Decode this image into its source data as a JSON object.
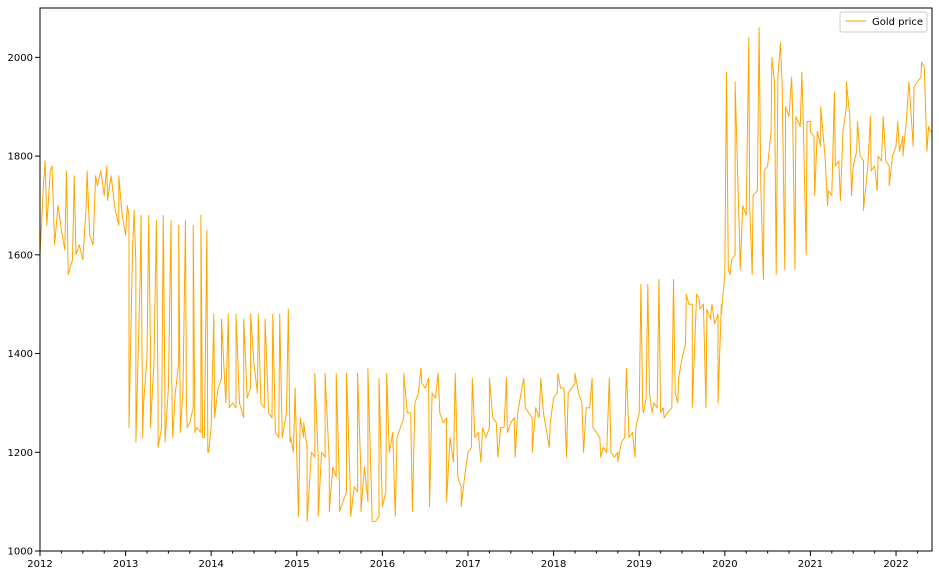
{
  "chart_data": {
    "type": "line",
    "xlim": [
      2012.0,
      2022.42
    ],
    "ylim": [
      1000,
      2100
    ],
    "x_ticks": [
      2012,
      2013,
      2014,
      2015,
      2016,
      2017,
      2018,
      2019,
      2020,
      2021,
      2022
    ],
    "x_tick_labels": [
      "2012",
      "2013",
      "2014",
      "2015",
      "2016",
      "2017",
      "2018",
      "2019",
      "2020",
      "2021",
      "2022"
    ],
    "y_ticks": [
      1000,
      1200,
      1400,
      1600,
      1800,
      2000
    ],
    "y_tick_labels": [
      "1000",
      "1200",
      "1400",
      "1600",
      "1800",
      "2000"
    ],
    "legend_position": "top-right",
    "grid": false,
    "series": [
      {
        "name": "Gold price",
        "color": "#ffa500",
        "x": [
          2012.0,
          2012.04,
          2012.08,
          2012.12,
          2012.17,
          2012.21,
          2012.25,
          2012.29,
          2012.33,
          2012.38,
          2012.42,
          2012.46,
          2012.5,
          2012.54,
          2012.58,
          2012.62,
          2012.67,
          2012.71,
          2012.75,
          2012.79,
          2012.83,
          2012.88,
          2012.92,
          2012.96,
          2013.0,
          2013.04,
          2013.08,
          2013.12,
          2013.17,
          2013.21,
          2013.25,
          2013.29,
          2013.33,
          2013.38,
          2013.42,
          2013.46,
          2013.5,
          2013.54,
          2013.58,
          2013.62,
          2013.67,
          2013.71,
          2013.75,
          2013.79,
          2013.83,
          2013.88,
          2013.92,
          2013.96,
          2014.0,
          2014.04,
          2014.08,
          2014.12,
          2014.17,
          2014.21,
          2014.25,
          2014.29,
          2014.33,
          2014.38,
          2014.42,
          2014.46,
          2014.5,
          2014.54,
          2014.58,
          2014.62,
          2014.67,
          2014.71,
          2014.75,
          2014.79,
          2014.83,
          2014.88,
          2014.92,
          2014.96,
          2015.0,
          2015.04,
          2015.08,
          2015.12,
          2015.17,
          2015.21,
          2015.25,
          2015.29,
          2015.33,
          2015.38,
          2015.42,
          2015.46,
          2015.5,
          2015.54,
          2015.58,
          2015.62,
          2015.67,
          2015.71,
          2015.75,
          2015.79,
          2015.83,
          2015.88,
          2015.92,
          2015.96,
          2016.0,
          2016.04,
          2016.08,
          2016.12,
          2016.17,
          2016.21,
          2016.25,
          2016.29,
          2016.33,
          2016.38,
          2016.42,
          2016.46,
          2016.5,
          2016.54,
          2016.58,
          2016.62,
          2016.67,
          2016.71,
          2016.75,
          2016.79,
          2016.83,
          2016.88,
          2016.92,
          2016.96,
          2017.0,
          2017.04,
          2017.08,
          2017.12,
          2017.17,
          2017.21,
          2017.25,
          2017.29,
          2017.33,
          2017.38,
          2017.42,
          2017.46,
          2017.5,
          2017.54,
          2017.58,
          2017.62,
          2017.67,
          2017.71,
          2017.75,
          2017.79,
          2017.83,
          2017.88,
          2017.92,
          2017.96,
          2018.0,
          2018.04,
          2018.08,
          2018.12,
          2018.17,
          2018.21,
          2018.25,
          2018.29,
          2018.33,
          2018.38,
          2018.42,
          2018.46,
          2018.5,
          2018.54,
          2018.58,
          2018.62,
          2018.67,
          2018.71,
          2018.75,
          2018.79,
          2018.83,
          2018.88,
          2018.92,
          2018.96,
          2019.0,
          2019.04,
          2019.08,
          2019.12,
          2019.17,
          2019.21,
          2019.25,
          2019.29,
          2019.33,
          2019.38,
          2019.42,
          2019.46,
          2019.5,
          2019.54,
          2019.58,
          2019.62,
          2019.67,
          2019.71,
          2019.75,
          2019.79,
          2019.83,
          2019.88,
          2019.92,
          2019.96,
          2020.0,
          2020.04,
          2020.08,
          2020.12,
          2020.17,
          2020.21,
          2020.25,
          2020.29,
          2020.33,
          2020.38,
          2020.42,
          2020.46,
          2020.5,
          2020.54,
          2020.58,
          2020.62,
          2020.67,
          2020.71,
          2020.75,
          2020.79,
          2020.83,
          2020.88,
          2020.92,
          2020.96,
          2021.0,
          2021.04,
          2021.08,
          2021.12,
          2021.17,
          2021.21,
          2021.25,
          2021.29,
          2021.33,
          2021.38,
          2021.42,
          2021.46,
          2021.5,
          2021.54,
          2021.58,
          2021.62,
          2021.67,
          2021.71,
          2021.75,
          2021.79,
          2021.83,
          2021.88,
          2021.92,
          2021.96,
          2022.0,
          2022.04,
          2022.08,
          2022.12,
          2022.17,
          2022.21,
          2022.25,
          2022.29,
          2022.33,
          2022.38,
          2022.42
        ],
        "y": [
          1600,
          1740,
          1660,
          1770,
          1620,
          1700,
          1650,
          1610,
          1560,
          1590,
          1600,
          1620,
          1590,
          1700,
          1640,
          1620,
          1740,
          1770,
          1720,
          1710,
          1760,
          1690,
          1660,
          1680,
          1640,
          1680,
          1610,
          1580,
          1560,
          1300,
          1390,
          1420,
          1380,
          1300,
          1250,
          1290,
          1330,
          1340,
          1320,
          1380,
          1330,
          1300,
          1260,
          1290,
          1250,
          1240,
          1230,
          1200,
          1250,
          1270,
          1330,
          1350,
          1300,
          1290,
          1300,
          1290,
          1300,
          1270,
          1310,
          1330,
          1380,
          1320,
          1300,
          1290,
          1280,
          1270,
          1240,
          1230,
          1230,
          1280,
          1220,
          1200,
          1190,
          1270,
          1230,
          1210,
          1200,
          1190,
          1190,
          1200,
          1190,
          1180,
          1170,
          1150,
          1120,
          1100,
          1120,
          1150,
          1130,
          1120,
          1150,
          1170,
          1100,
          1070,
          1060,
          1070,
          1090,
          1120,
          1200,
          1240,
          1230,
          1250,
          1270,
          1280,
          1280,
          1300,
          1320,
          1340,
          1330,
          1350,
          1320,
          1310,
          1280,
          1260,
          1270,
          1230,
          1180,
          1150,
          1130,
          1150,
          1200,
          1210,
          1230,
          1240,
          1250,
          1230,
          1250,
          1270,
          1260,
          1250,
          1250,
          1240,
          1260,
          1270,
          1280,
          1320,
          1290,
          1280,
          1270,
          1290,
          1270,
          1280,
          1240,
          1260,
          1310,
          1320,
          1330,
          1330,
          1320,
          1330,
          1340,
          1320,
          1300,
          1290,
          1290,
          1250,
          1240,
          1230,
          1210,
          1200,
          1200,
          1190,
          1200,
          1220,
          1230,
          1230,
          1240,
          1250,
          1280,
          1290,
          1310,
          1320,
          1300,
          1290,
          1280,
          1270,
          1280,
          1290,
          1320,
          1350,
          1390,
          1420,
          1500,
          1500,
          1520,
          1490,
          1500,
          1490,
          1470,
          1460,
          1480,
          1500,
          1560,
          1570,
          1590,
          1600,
          1640,
          1700,
          1680,
          1700,
          1720,
          1730,
          1740,
          1770,
          1780,
          1850,
          1950,
          1960,
          1940,
          1900,
          1880,
          1900,
          1880,
          1860,
          1840,
          1870,
          1870,
          1840,
          1850,
          1820,
          1800,
          1730,
          1720,
          1780,
          1790,
          1850,
          1900,
          1880,
          1780,
          1810,
          1800,
          1790,
          1780,
          1770,
          1780,
          1800,
          1790,
          1790,
          1780,
          1800,
          1820,
          1810,
          1840,
          1870,
          1900,
          1940,
          1950,
          1960,
          1980,
          1860,
          1850
        ],
        "spikes": [
          [
            2012.06,
            1790
          ],
          [
            2012.14,
            1780
          ],
          [
            2012.31,
            1770
          ],
          [
            2012.4,
            1760
          ],
          [
            2012.55,
            1770
          ],
          [
            2012.65,
            1760
          ],
          [
            2012.78,
            1780
          ],
          [
            2012.92,
            1760
          ],
          [
            2013.02,
            1700
          ],
          [
            2013.04,
            1250
          ],
          [
            2013.1,
            1690
          ],
          [
            2013.12,
            1220
          ],
          [
            2013.18,
            1680
          ],
          [
            2013.2,
            1230
          ],
          [
            2013.27,
            1680
          ],
          [
            2013.29,
            1250
          ],
          [
            2013.36,
            1670
          ],
          [
            2013.38,
            1210
          ],
          [
            2013.44,
            1680
          ],
          [
            2013.46,
            1220
          ],
          [
            2013.53,
            1670
          ],
          [
            2013.55,
            1230
          ],
          [
            2013.62,
            1660
          ],
          [
            2013.64,
            1240
          ],
          [
            2013.7,
            1670
          ],
          [
            2013.72,
            1250
          ],
          [
            2013.79,
            1660
          ],
          [
            2013.81,
            1240
          ],
          [
            2013.88,
            1680
          ],
          [
            2013.9,
            1230
          ],
          [
            2013.95,
            1650
          ],
          [
            2013.97,
            1200
          ],
          [
            2014.03,
            1480
          ],
          [
            2014.12,
            1470
          ],
          [
            2014.2,
            1480
          ],
          [
            2014.29,
            1480
          ],
          [
            2014.38,
            1470
          ],
          [
            2014.46,
            1480
          ],
          [
            2014.55,
            1480
          ],
          [
            2014.63,
            1470
          ],
          [
            2014.72,
            1480
          ],
          [
            2014.8,
            1480
          ],
          [
            2014.9,
            1490
          ],
          [
            2014.93,
            1230
          ],
          [
            2014.98,
            1330
          ],
          [
            2015.02,
            1070
          ],
          [
            2015.08,
            1260
          ],
          [
            2015.12,
            1060
          ],
          [
            2015.21,
            1360
          ],
          [
            2015.25,
            1070
          ],
          [
            2015.33,
            1360
          ],
          [
            2015.38,
            1080
          ],
          [
            2015.46,
            1360
          ],
          [
            2015.5,
            1080
          ],
          [
            2015.58,
            1360
          ],
          [
            2015.63,
            1070
          ],
          [
            2015.71,
            1360
          ],
          [
            2015.75,
            1080
          ],
          [
            2015.83,
            1370
          ],
          [
            2015.88,
            1060
          ],
          [
            2015.96,
            1350
          ],
          [
            2016.05,
            1360
          ],
          [
            2016.15,
            1070
          ],
          [
            2016.25,
            1360
          ],
          [
            2016.35,
            1080
          ],
          [
            2016.45,
            1370
          ],
          [
            2016.55,
            1090
          ],
          [
            2016.65,
            1360
          ],
          [
            2016.75,
            1100
          ],
          [
            2016.85,
            1360
          ],
          [
            2016.92,
            1090
          ],
          [
            2017.05,
            1350
          ],
          [
            2017.15,
            1180
          ],
          [
            2017.25,
            1350
          ],
          [
            2017.35,
            1190
          ],
          [
            2017.45,
            1350
          ],
          [
            2017.55,
            1190
          ],
          [
            2017.65,
            1350
          ],
          [
            2017.75,
            1200
          ],
          [
            2017.85,
            1350
          ],
          [
            2017.95,
            1210
          ],
          [
            2018.05,
            1360
          ],
          [
            2018.15,
            1190
          ],
          [
            2018.25,
            1360
          ],
          [
            2018.35,
            1200
          ],
          [
            2018.45,
            1350
          ],
          [
            2018.55,
            1190
          ],
          [
            2018.65,
            1350
          ],
          [
            2018.75,
            1180
          ],
          [
            2018.85,
            1370
          ],
          [
            2018.95,
            1190
          ],
          [
            2019.02,
            1540
          ],
          [
            2019.05,
            1280
          ],
          [
            2019.1,
            1540
          ],
          [
            2019.15,
            1280
          ],
          [
            2019.23,
            1550
          ],
          [
            2019.28,
            1290
          ],
          [
            2019.4,
            1550
          ],
          [
            2019.45,
            1300
          ],
          [
            2019.55,
            1520
          ],
          [
            2019.62,
            1290
          ],
          [
            2019.7,
            1510
          ],
          [
            2019.78,
            1290
          ],
          [
            2019.85,
            1500
          ],
          [
            2019.92,
            1300
          ],
          [
            2019.96,
            1480
          ],
          [
            2020.02,
            1970
          ],
          [
            2020.06,
            1560
          ],
          [
            2020.12,
            1950
          ],
          [
            2020.18,
            1570
          ],
          [
            2020.28,
            2040
          ],
          [
            2020.32,
            1560
          ],
          [
            2020.4,
            2060
          ],
          [
            2020.45,
            1550
          ],
          [
            2020.55,
            2000
          ],
          [
            2020.6,
            1560
          ],
          [
            2020.65,
            2030
          ],
          [
            2020.7,
            1570
          ],
          [
            2020.78,
            1960
          ],
          [
            2020.82,
            1570
          ],
          [
            2020.9,
            1970
          ],
          [
            2020.95,
            1600
          ],
          [
            2021.0,
            1850
          ],
          [
            2021.05,
            1720
          ],
          [
            2021.12,
            1900
          ],
          [
            2021.2,
            1700
          ],
          [
            2021.28,
            1930
          ],
          [
            2021.35,
            1710
          ],
          [
            2021.42,
            1950
          ],
          [
            2021.48,
            1720
          ],
          [
            2021.55,
            1870
          ],
          [
            2021.62,
            1690
          ],
          [
            2021.7,
            1880
          ],
          [
            2021.78,
            1730
          ],
          [
            2021.85,
            1880
          ],
          [
            2021.92,
            1740
          ],
          [
            2022.02,
            1870
          ],
          [
            2022.08,
            1800
          ],
          [
            2022.15,
            1950
          ],
          [
            2022.2,
            1820
          ],
          [
            2022.3,
            1990
          ],
          [
            2022.36,
            1810
          ],
          [
            2022.4,
            1850
          ]
        ]
      }
    ]
  }
}
